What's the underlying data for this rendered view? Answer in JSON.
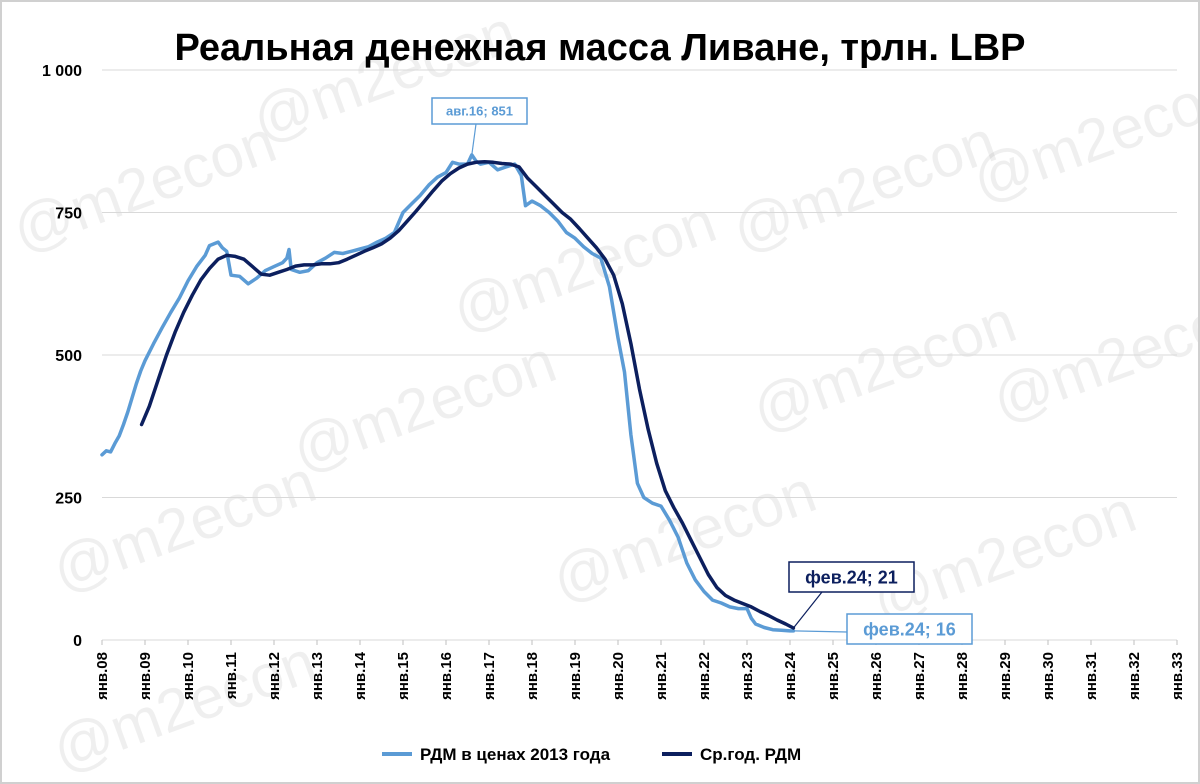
{
  "chart_data": {
    "type": "line",
    "title": "Реальная денежная масса Ливане, трлн. LBP",
    "watermark": "@m2econ",
    "ylim": [
      0,
      1000
    ],
    "yticks": [
      {
        "value": 0,
        "label": "0"
      },
      {
        "value": 250,
        "label": "250"
      },
      {
        "value": 500,
        "label": "500"
      },
      {
        "value": 750,
        "label": "750"
      },
      {
        "value": 1000,
        "label": "1 000"
      }
    ],
    "xlim": [
      2008.0,
      2033.0
    ],
    "xticks": [
      {
        "value": 2008,
        "label": "янв.08"
      },
      {
        "value": 2009,
        "label": "янв.09"
      },
      {
        "value": 2010,
        "label": "янв.10"
      },
      {
        "value": 2011,
        "label": "янв.11"
      },
      {
        "value": 2012,
        "label": "янв.12"
      },
      {
        "value": 2013,
        "label": "янв.13"
      },
      {
        "value": 2014,
        "label": "янв.14"
      },
      {
        "value": 2015,
        "label": "янв.15"
      },
      {
        "value": 2016,
        "label": "янв.16"
      },
      {
        "value": 2017,
        "label": "янв.17"
      },
      {
        "value": 2018,
        "label": "янв.18"
      },
      {
        "value": 2019,
        "label": "янв.19"
      },
      {
        "value": 2020,
        "label": "янв.20"
      },
      {
        "value": 2021,
        "label": "янв.21"
      },
      {
        "value": 2022,
        "label": "янв.22"
      },
      {
        "value": 2023,
        "label": "янв.23"
      },
      {
        "value": 2024,
        "label": "янв.24"
      },
      {
        "value": 2025,
        "label": "янв.25"
      },
      {
        "value": 2026,
        "label": "янв.26"
      },
      {
        "value": 2027,
        "label": "янв.27"
      },
      {
        "value": 2028,
        "label": "янв.28"
      },
      {
        "value": 2029,
        "label": "янв.29"
      },
      {
        "value": 2030,
        "label": "янв.30"
      },
      {
        "value": 2031,
        "label": "янв.31"
      },
      {
        "value": 2032,
        "label": "янв.32"
      },
      {
        "value": 2033,
        "label": "янв.33"
      }
    ],
    "legend_position": "bottom",
    "grid": true,
    "series": [
      {
        "name": "РДМ в ценах 2013 года",
        "color": "#5b9bd5",
        "points": [
          [
            2008.0,
            325
          ],
          [
            2008.1,
            332
          ],
          [
            2008.2,
            330
          ],
          [
            2008.3,
            345
          ],
          [
            2008.4,
            358
          ],
          [
            2008.5,
            378
          ],
          [
            2008.6,
            400
          ],
          [
            2008.7,
            425
          ],
          [
            2008.8,
            450
          ],
          [
            2008.9,
            472
          ],
          [
            2009.0,
            490
          ],
          [
            2009.2,
            520
          ],
          [
            2009.4,
            548
          ],
          [
            2009.6,
            575
          ],
          [
            2009.8,
            600
          ],
          [
            2010.0,
            630
          ],
          [
            2010.2,
            655
          ],
          [
            2010.4,
            675
          ],
          [
            2010.5,
            692
          ],
          [
            2010.6,
            695
          ],
          [
            2010.7,
            698
          ],
          [
            2010.8,
            688
          ],
          [
            2010.9,
            682
          ],
          [
            2011.0,
            640
          ],
          [
            2011.2,
            638
          ],
          [
            2011.4,
            625
          ],
          [
            2011.6,
            635
          ],
          [
            2011.8,
            648
          ],
          [
            2012.0,
            655
          ],
          [
            2012.2,
            662
          ],
          [
            2012.3,
            670
          ],
          [
            2012.35,
            685
          ],
          [
            2012.4,
            650
          ],
          [
            2012.6,
            645
          ],
          [
            2012.8,
            648
          ],
          [
            2013.0,
            662
          ],
          [
            2013.2,
            670
          ],
          [
            2013.4,
            680
          ],
          [
            2013.6,
            678
          ],
          [
            2013.8,
            682
          ],
          [
            2014.0,
            686
          ],
          [
            2014.2,
            690
          ],
          [
            2014.4,
            698
          ],
          [
            2014.6,
            705
          ],
          [
            2014.8,
            715
          ],
          [
            2015.0,
            750
          ],
          [
            2015.2,
            765
          ],
          [
            2015.4,
            780
          ],
          [
            2015.6,
            798
          ],
          [
            2015.8,
            812
          ],
          [
            2016.0,
            820
          ],
          [
            2016.15,
            838
          ],
          [
            2016.3,
            835
          ],
          [
            2016.5,
            835
          ],
          [
            2016.6,
            851
          ],
          [
            2016.7,
            840
          ],
          [
            2016.8,
            835
          ],
          [
            2017.0,
            838
          ],
          [
            2017.2,
            825
          ],
          [
            2017.4,
            830
          ],
          [
            2017.6,
            835
          ],
          [
            2017.75,
            815
          ],
          [
            2017.85,
            762
          ],
          [
            2018.0,
            770
          ],
          [
            2018.2,
            762
          ],
          [
            2018.4,
            750
          ],
          [
            2018.6,
            735
          ],
          [
            2018.8,
            715
          ],
          [
            2019.0,
            705
          ],
          [
            2019.2,
            690
          ],
          [
            2019.4,
            678
          ],
          [
            2019.6,
            670
          ],
          [
            2019.8,
            620
          ],
          [
            2020.0,
            530
          ],
          [
            2020.15,
            470
          ],
          [
            2020.3,
            360
          ],
          [
            2020.45,
            275
          ],
          [
            2020.6,
            250
          ],
          [
            2020.8,
            240
          ],
          [
            2021.0,
            235
          ],
          [
            2021.2,
            210
          ],
          [
            2021.4,
            180
          ],
          [
            2021.6,
            135
          ],
          [
            2021.8,
            105
          ],
          [
            2022.0,
            85
          ],
          [
            2022.2,
            70
          ],
          [
            2022.4,
            65
          ],
          [
            2022.6,
            58
          ],
          [
            2022.8,
            55
          ],
          [
            2023.0,
            55
          ],
          [
            2023.1,
            38
          ],
          [
            2023.2,
            28
          ],
          [
            2023.4,
            22
          ],
          [
            2023.6,
            18
          ],
          [
            2023.8,
            17
          ],
          [
            2024.0,
            16
          ],
          [
            2024.08,
            16
          ]
        ]
      },
      {
        "name": "Ср.год. РДМ",
        "color": "#0c1f5e",
        "points": [
          [
            2008.92,
            378
          ],
          [
            2009.1,
            410
          ],
          [
            2009.3,
            455
          ],
          [
            2009.5,
            500
          ],
          [
            2009.7,
            540
          ],
          [
            2009.9,
            575
          ],
          [
            2010.1,
            605
          ],
          [
            2010.3,
            632
          ],
          [
            2010.5,
            652
          ],
          [
            2010.7,
            668
          ],
          [
            2010.9,
            675
          ],
          [
            2011.1,
            673
          ],
          [
            2011.3,
            668
          ],
          [
            2011.5,
            655
          ],
          [
            2011.7,
            642
          ],
          [
            2011.9,
            640
          ],
          [
            2012.1,
            645
          ],
          [
            2012.3,
            650
          ],
          [
            2012.5,
            656
          ],
          [
            2012.7,
            658
          ],
          [
            2012.9,
            658
          ],
          [
            2013.1,
            660
          ],
          [
            2013.3,
            660
          ],
          [
            2013.5,
            662
          ],
          [
            2013.7,
            668
          ],
          [
            2013.9,
            675
          ],
          [
            2014.1,
            682
          ],
          [
            2014.3,
            688
          ],
          [
            2014.5,
            695
          ],
          [
            2014.7,
            705
          ],
          [
            2014.9,
            718
          ],
          [
            2015.1,
            735
          ],
          [
            2015.3,
            752
          ],
          [
            2015.5,
            770
          ],
          [
            2015.7,
            788
          ],
          [
            2015.9,
            805
          ],
          [
            2016.1,
            818
          ],
          [
            2016.3,
            828
          ],
          [
            2016.5,
            835
          ],
          [
            2016.7,
            838
          ],
          [
            2016.9,
            839
          ],
          [
            2017.1,
            838
          ],
          [
            2017.3,
            836
          ],
          [
            2017.5,
            835
          ],
          [
            2017.7,
            830
          ],
          [
            2017.9,
            810
          ],
          [
            2018.1,
            795
          ],
          [
            2018.3,
            780
          ],
          [
            2018.5,
            765
          ],
          [
            2018.7,
            750
          ],
          [
            2018.9,
            738
          ],
          [
            2019.1,
            722
          ],
          [
            2019.3,
            705
          ],
          [
            2019.5,
            688
          ],
          [
            2019.7,
            668
          ],
          [
            2019.9,
            640
          ],
          [
            2020.1,
            590
          ],
          [
            2020.3,
            520
          ],
          [
            2020.5,
            440
          ],
          [
            2020.7,
            370
          ],
          [
            2020.9,
            310
          ],
          [
            2021.1,
            262
          ],
          [
            2021.3,
            232
          ],
          [
            2021.5,
            205
          ],
          [
            2021.7,
            175
          ],
          [
            2021.9,
            145
          ],
          [
            2022.1,
            115
          ],
          [
            2022.3,
            92
          ],
          [
            2022.5,
            78
          ],
          [
            2022.7,
            70
          ],
          [
            2022.9,
            64
          ],
          [
            2023.1,
            58
          ],
          [
            2023.3,
            50
          ],
          [
            2023.5,
            43
          ],
          [
            2023.7,
            35
          ],
          [
            2023.9,
            28
          ],
          [
            2024.08,
            21
          ]
        ]
      }
    ],
    "annotations": [
      {
        "label": "авг.16;   851",
        "series": 0,
        "x": 2016.6,
        "y": 851
      },
      {
        "label": "фев.24;   21",
        "series": 1,
        "x": 2024.08,
        "y": 21
      },
      {
        "label": "фев.24;   16",
        "series": 0,
        "x": 2024.08,
        "y": 16
      }
    ]
  }
}
